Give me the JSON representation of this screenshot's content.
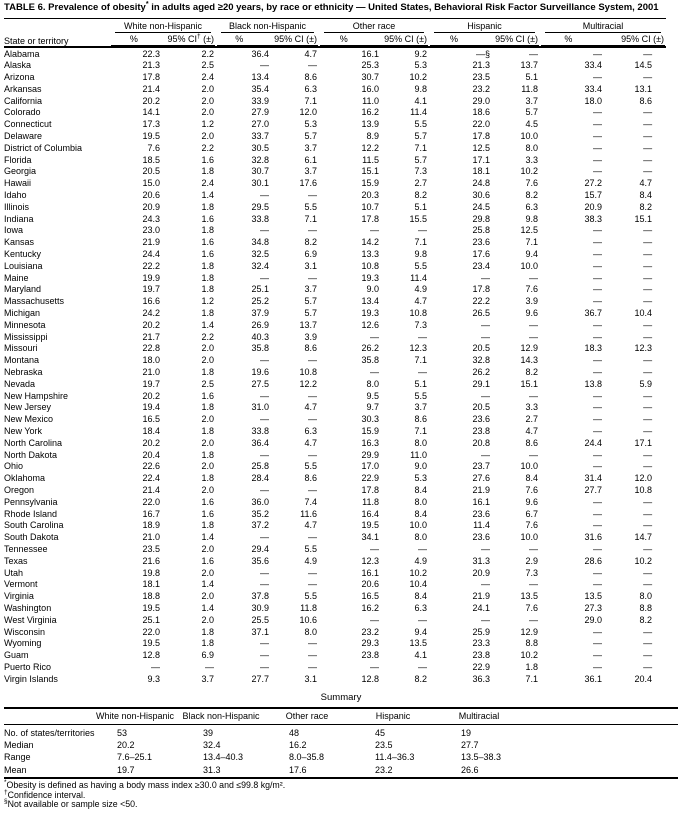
{
  "title": {
    "pre": "TABLE 6. Prevalence of obesity",
    "sup": "*",
    "post": " in adults aged ≥20 years, by race or ethnicity — United States, Behavioral Risk Factor Surveillance System, 2001"
  },
  "table": {
    "row_header": "State or territory",
    "groups": [
      "White non-Hispanic",
      "Black non-Hispanic",
      "Other race",
      "Hispanic",
      "Multiracial"
    ],
    "pct_label": "%",
    "ci_label": "95% CI (±)",
    "ci_first": {
      "pre": "95% CI",
      "sup": "†",
      "post": " (±)"
    },
    "rows": [
      {
        "state": "Alabama",
        "values": [
          "22.3",
          "2.2",
          "36.4",
          "4.7",
          "16.1",
          "9.2",
          "—§",
          "—",
          "—",
          "—"
        ]
      },
      {
        "state": "Alaska",
        "values": [
          "21.3",
          "2.5",
          "—",
          "—",
          "25.3",
          "5.3",
          "21.3",
          "13.7",
          "33.4",
          "14.5"
        ]
      },
      {
        "state": "Arizona",
        "values": [
          "17.8",
          "2.4",
          "13.4",
          "8.6",
          "30.7",
          "10.2",
          "23.5",
          "5.1",
          "—",
          "—"
        ]
      },
      {
        "state": "Arkansas",
        "values": [
          "21.4",
          "2.0",
          "35.4",
          "6.3",
          "16.0",
          "9.8",
          "23.2",
          "11.8",
          "33.4",
          "13.1"
        ]
      },
      {
        "state": "California",
        "values": [
          "20.2",
          "2.0",
          "33.9",
          "7.1",
          "11.0",
          "4.1",
          "29.0",
          "3.7",
          "18.0",
          "8.6"
        ]
      },
      {
        "state": "Colorado",
        "values": [
          "14.1",
          "2.0",
          "27.9",
          "12.0",
          "16.2",
          "11.4",
          "18.6",
          "5.7",
          "—",
          "—"
        ]
      },
      {
        "state": "Connecticut",
        "values": [
          "17.3",
          "1.2",
          "27.0",
          "5.3",
          "13.9",
          "5.5",
          "22.0",
          "4.5",
          "—",
          "—"
        ]
      },
      {
        "state": "Delaware",
        "values": [
          "19.5",
          "2.0",
          "33.7",
          "5.7",
          "8.9",
          "5.7",
          "17.8",
          "10.0",
          "—",
          "—"
        ]
      },
      {
        "state": "District of Columbia",
        "values": [
          "7.6",
          "2.2",
          "30.5",
          "3.7",
          "12.2",
          "7.1",
          "12.5",
          "8.0",
          "—",
          "—"
        ]
      },
      {
        "state": "Florida",
        "values": [
          "18.5",
          "1.6",
          "32.8",
          "6.1",
          "11.5",
          "5.7",
          "17.1",
          "3.3",
          "—",
          "—"
        ]
      },
      {
        "state": "Georgia",
        "values": [
          "20.5",
          "1.8",
          "30.7",
          "3.7",
          "15.1",
          "7.3",
          "18.1",
          "10.2",
          "—",
          "—"
        ]
      },
      {
        "state": "Hawaii",
        "values": [
          "15.0",
          "2.4",
          "30.1",
          "17.6",
          "15.9",
          "2.7",
          "24.8",
          "7.6",
          "27.2",
          "4.7"
        ]
      },
      {
        "state": "Idaho",
        "values": [
          "20.6",
          "1.4",
          "—",
          "—",
          "20.3",
          "8.2",
          "30.6",
          "8.2",
          "15.7",
          "8.4"
        ]
      },
      {
        "state": "Illinois",
        "values": [
          "20.9",
          "1.8",
          "29.5",
          "5.5",
          "10.7",
          "5.1",
          "24.5",
          "6.3",
          "20.9",
          "8.2"
        ]
      },
      {
        "state": "Indiana",
        "values": [
          "24.3",
          "1.6",
          "33.8",
          "7.1",
          "17.8",
          "15.5",
          "29.8",
          "9.8",
          "38.3",
          "15.1"
        ]
      },
      {
        "state": "Iowa",
        "values": [
          "23.0",
          "1.8",
          "—",
          "—",
          "—",
          "—",
          "25.8",
          "12.5",
          "—",
          "—"
        ]
      },
      {
        "state": "Kansas",
        "values": [
          "21.9",
          "1.6",
          "34.8",
          "8.2",
          "14.2",
          "7.1",
          "23.6",
          "7.1",
          "—",
          "—"
        ]
      },
      {
        "state": "Kentucky",
        "values": [
          "24.4",
          "1.6",
          "32.5",
          "6.9",
          "13.3",
          "9.8",
          "17.6",
          "9.4",
          "—",
          "—"
        ]
      },
      {
        "state": "Louisiana",
        "values": [
          "22.2",
          "1.8",
          "32.4",
          "3.1",
          "10.8",
          "5.5",
          "23.4",
          "10.0",
          "—",
          "—"
        ]
      },
      {
        "state": "Maine",
        "values": [
          "19.9",
          "1.8",
          "—",
          "—",
          "19.3",
          "11.4",
          "—",
          "—",
          "—",
          "—"
        ]
      },
      {
        "state": "Maryland",
        "values": [
          "19.7",
          "1.8",
          "25.1",
          "3.7",
          "9.0",
          "4.9",
          "17.8",
          "7.6",
          "—",
          "—"
        ]
      },
      {
        "state": "Massachusetts",
        "values": [
          "16.6",
          "1.2",
          "25.2",
          "5.7",
          "13.4",
          "4.7",
          "22.2",
          "3.9",
          "—",
          "—"
        ]
      },
      {
        "state": "Michigan",
        "values": [
          "24.2",
          "1.8",
          "37.9",
          "5.7",
          "19.3",
          "10.8",
          "26.5",
          "9.6",
          "36.7",
          "10.4"
        ]
      },
      {
        "state": "Minnesota",
        "values": [
          "20.2",
          "1.4",
          "26.9",
          "13.7",
          "12.6",
          "7.3",
          "—",
          "—",
          "—",
          "—"
        ]
      },
      {
        "state": "Mississippi",
        "values": [
          "21.7",
          "2.2",
          "40.3",
          "3.9",
          "—",
          "—",
          "—",
          "—",
          "—",
          "—"
        ]
      },
      {
        "state": "Missouri",
        "values": [
          "22.8",
          "2.0",
          "35.8",
          "8.6",
          "26.2",
          "12.3",
          "20.5",
          "12.9",
          "18.3",
          "12.3"
        ]
      },
      {
        "state": "Montana",
        "values": [
          "18.0",
          "2.0",
          "—",
          "—",
          "35.8",
          "7.1",
          "32.8",
          "14.3",
          "—",
          "—"
        ]
      },
      {
        "state": "Nebraska",
        "values": [
          "21.0",
          "1.8",
          "19.6",
          "10.8",
          "—",
          "—",
          "26.2",
          "8.2",
          "—",
          "—"
        ]
      },
      {
        "state": "Nevada",
        "values": [
          "19.7",
          "2.5",
          "27.5",
          "12.2",
          "8.0",
          "5.1",
          "29.1",
          "15.1",
          "13.8",
          "5.9"
        ]
      },
      {
        "state": "New Hampshire",
        "values": [
          "20.2",
          "1.6",
          "—",
          "—",
          "9.5",
          "5.5",
          "—",
          "—",
          "—",
          "—"
        ]
      },
      {
        "state": "New Jersey",
        "values": [
          "19.4",
          "1.8",
          "31.0",
          "4.7",
          "9.7",
          "3.7",
          "20.5",
          "3.3",
          "—",
          "—"
        ]
      },
      {
        "state": "New Mexico",
        "values": [
          "16.5",
          "2.0",
          "—",
          "—",
          "30.3",
          "8.6",
          "23.6",
          "2.7",
          "—",
          "—"
        ]
      },
      {
        "state": "New York",
        "values": [
          "18.4",
          "1.8",
          "33.8",
          "6.3",
          "15.9",
          "7.1",
          "23.8",
          "4.7",
          "—",
          "—"
        ]
      },
      {
        "state": "North Carolina",
        "values": [
          "20.2",
          "2.0",
          "36.4",
          "4.7",
          "16.3",
          "8.0",
          "20.8",
          "8.6",
          "24.4",
          "17.1"
        ]
      },
      {
        "state": "North Dakota",
        "values": [
          "20.4",
          "1.8",
          "—",
          "—",
          "29.9",
          "11.0",
          "—",
          "—",
          "—",
          "—"
        ]
      },
      {
        "state": "Ohio",
        "values": [
          "22.6",
          "2.0",
          "25.8",
          "5.5",
          "17.0",
          "9.0",
          "23.7",
          "10.0",
          "—",
          "—"
        ]
      },
      {
        "state": "Oklahoma",
        "values": [
          "22.4",
          "1.8",
          "28.4",
          "8.6",
          "22.9",
          "5.3",
          "27.6",
          "8.4",
          "31.4",
          "12.0"
        ]
      },
      {
        "state": "Oregon",
        "values": [
          "21.4",
          "2.0",
          "—",
          "—",
          "17.8",
          "8.4",
          "21.9",
          "7.6",
          "27.7",
          "10.8"
        ]
      },
      {
        "state": "Pennsylvania",
        "values": [
          "22.0",
          "1.6",
          "36.0",
          "7.4",
          "11.8",
          "8.0",
          "16.1",
          "9.6",
          "—",
          "—"
        ]
      },
      {
        "state": "Rhode Island",
        "values": [
          "16.7",
          "1.6",
          "35.2",
          "11.6",
          "16.4",
          "8.4",
          "23.6",
          "6.7",
          "—",
          "—"
        ]
      },
      {
        "state": "South Carolina",
        "values": [
          "18.9",
          "1.8",
          "37.2",
          "4.7",
          "19.5",
          "10.0",
          "11.4",
          "7.6",
          "—",
          "—"
        ]
      },
      {
        "state": "South Dakota",
        "values": [
          "21.0",
          "1.4",
          "—",
          "—",
          "34.1",
          "8.0",
          "23.6",
          "10.0",
          "31.6",
          "14.7"
        ]
      },
      {
        "state": "Tennessee",
        "values": [
          "23.5",
          "2.0",
          "29.4",
          "5.5",
          "—",
          "—",
          "—",
          "—",
          "—",
          "—"
        ]
      },
      {
        "state": "Texas",
        "values": [
          "21.6",
          "1.6",
          "35.6",
          "4.9",
          "12.3",
          "4.9",
          "31.3",
          "2.9",
          "28.6",
          "10.2"
        ]
      },
      {
        "state": "Utah",
        "values": [
          "19.8",
          "2.0",
          "—",
          "—",
          "16.1",
          "10.2",
          "20.9",
          "7.3",
          "—",
          "—"
        ]
      },
      {
        "state": "Vermont",
        "values": [
          "18.1",
          "1.4",
          "—",
          "—",
          "20.6",
          "10.4",
          "—",
          "—",
          "—",
          "—"
        ]
      },
      {
        "state": "Virginia",
        "values": [
          "18.8",
          "2.0",
          "37.8",
          "5.5",
          "16.5",
          "8.4",
          "21.9",
          "13.5",
          "13.5",
          "8.0"
        ]
      },
      {
        "state": "Washington",
        "values": [
          "19.5",
          "1.4",
          "30.9",
          "11.8",
          "16.2",
          "6.3",
          "24.1",
          "7.6",
          "27.3",
          "8.8"
        ]
      },
      {
        "state": "West Virginia",
        "values": [
          "25.1",
          "2.0",
          "25.5",
          "10.6",
          "—",
          "—",
          "—",
          "—",
          "29.0",
          "8.2"
        ]
      },
      {
        "state": "Wisconsin",
        "values": [
          "22.0",
          "1.8",
          "37.1",
          "8.0",
          "23.2",
          "9.4",
          "25.9",
          "12.9",
          "—",
          "—"
        ]
      },
      {
        "state": "Wyoming",
        "values": [
          "19.5",
          "1.8",
          "—",
          "—",
          "29.3",
          "13.5",
          "23.3",
          "8.8",
          "—",
          "—"
        ]
      },
      {
        "state": "Guam",
        "values": [
          "12.8",
          "6.9",
          "—",
          "—",
          "23.8",
          "4.1",
          "23.8",
          "10.2",
          "—",
          "—"
        ]
      },
      {
        "state": "Puerto Rico",
        "values": [
          "—",
          "—",
          "—",
          "—",
          "—",
          "—",
          "22.9",
          "1.8",
          "—",
          "—"
        ]
      },
      {
        "state": "Virgin Islands",
        "values": [
          "9.3",
          "3.7",
          "27.7",
          "3.1",
          "12.8",
          "8.2",
          "36.3",
          "7.1",
          "36.1",
          "20.4"
        ]
      }
    ]
  },
  "summary": {
    "title": "Summary",
    "columns": [
      "White non-Hispanic",
      "Black non-Hispanic",
      "Other race",
      "Hispanic",
      "Multiracial"
    ],
    "rows": [
      {
        "label": "No. of states/territories",
        "values": [
          "53",
          "39",
          "48",
          "45",
          "19"
        ]
      },
      {
        "label": "Median",
        "values": [
          "20.2",
          "32.4",
          "16.2",
          "23.5",
          "27.7"
        ]
      },
      {
        "label": "Range",
        "values": [
          "7.6–25.1",
          "13.4–40.3",
          "8.0–35.8",
          "11.4–36.3",
          "13.5–38.3"
        ]
      },
      {
        "label": "Mean",
        "values": [
          "19.7",
          "31.3",
          "17.6",
          "23.2",
          "26.6"
        ]
      }
    ]
  },
  "footnotes": [
    {
      "marker": "*",
      "text": "Obesity is defined as having a body mass index ≥30.0 and ≤99.8 kg/m²."
    },
    {
      "marker": "†",
      "text": "Confidence interval."
    },
    {
      "marker": "§",
      "text": "Not available or sample size <50."
    }
  ]
}
